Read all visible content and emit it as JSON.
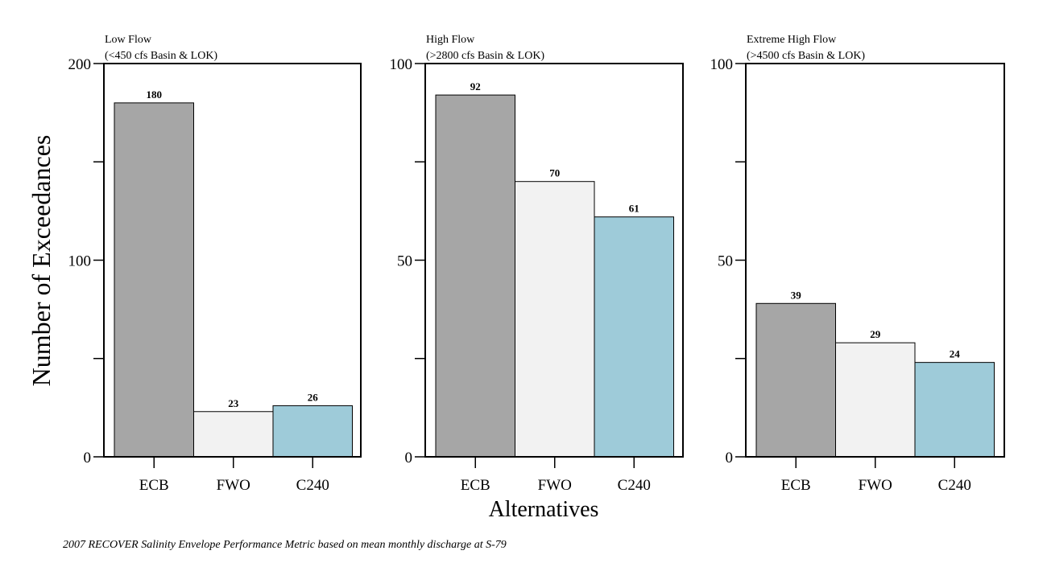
{
  "y_title": "Number of Exceedances",
  "x_title": "Alternatives",
  "footnote": "2007 RECOVER Salinity Envelope Performance Metric based on mean monthly discharge at S-79",
  "colors": {
    "ECB": "#a6a6a6",
    "FWO": "#f2f2f2",
    "C240": "#9ecbd9",
    "axis": "#000000"
  },
  "chart_data": [
    {
      "type": "bar",
      "title_line1": "Low Flow",
      "title_line2": "(<450 cfs Basin & LOK)",
      "categories": [
        "ECB",
        "FWO",
        "C240"
      ],
      "values": [
        180,
        23,
        26
      ],
      "ylim": [
        0,
        200
      ],
      "yticks_labeled": [
        0,
        100,
        200
      ],
      "yticks_minor": [
        50,
        150
      ],
      "grid": false
    },
    {
      "type": "bar",
      "title_line1": "High Flow",
      "title_line2": "(>2800 cfs Basin & LOK)",
      "categories": [
        "ECB",
        "FWO",
        "C240"
      ],
      "values": [
        92,
        70,
        61
      ],
      "ylim": [
        0,
        100
      ],
      "yticks_labeled": [
        0,
        50,
        100
      ],
      "yticks_minor": [
        25,
        75
      ],
      "grid": false
    },
    {
      "type": "bar",
      "title_line1": "Extreme High Flow",
      "title_line2": "(>4500 cfs Basin & LOK)",
      "categories": [
        "ECB",
        "FWO",
        "C240"
      ],
      "values": [
        39,
        29,
        24
      ],
      "ylim": [
        0,
        100
      ],
      "yticks_labeled": [
        0,
        50,
        100
      ],
      "yticks_minor": [
        25,
        75
      ],
      "grid": false
    }
  ]
}
